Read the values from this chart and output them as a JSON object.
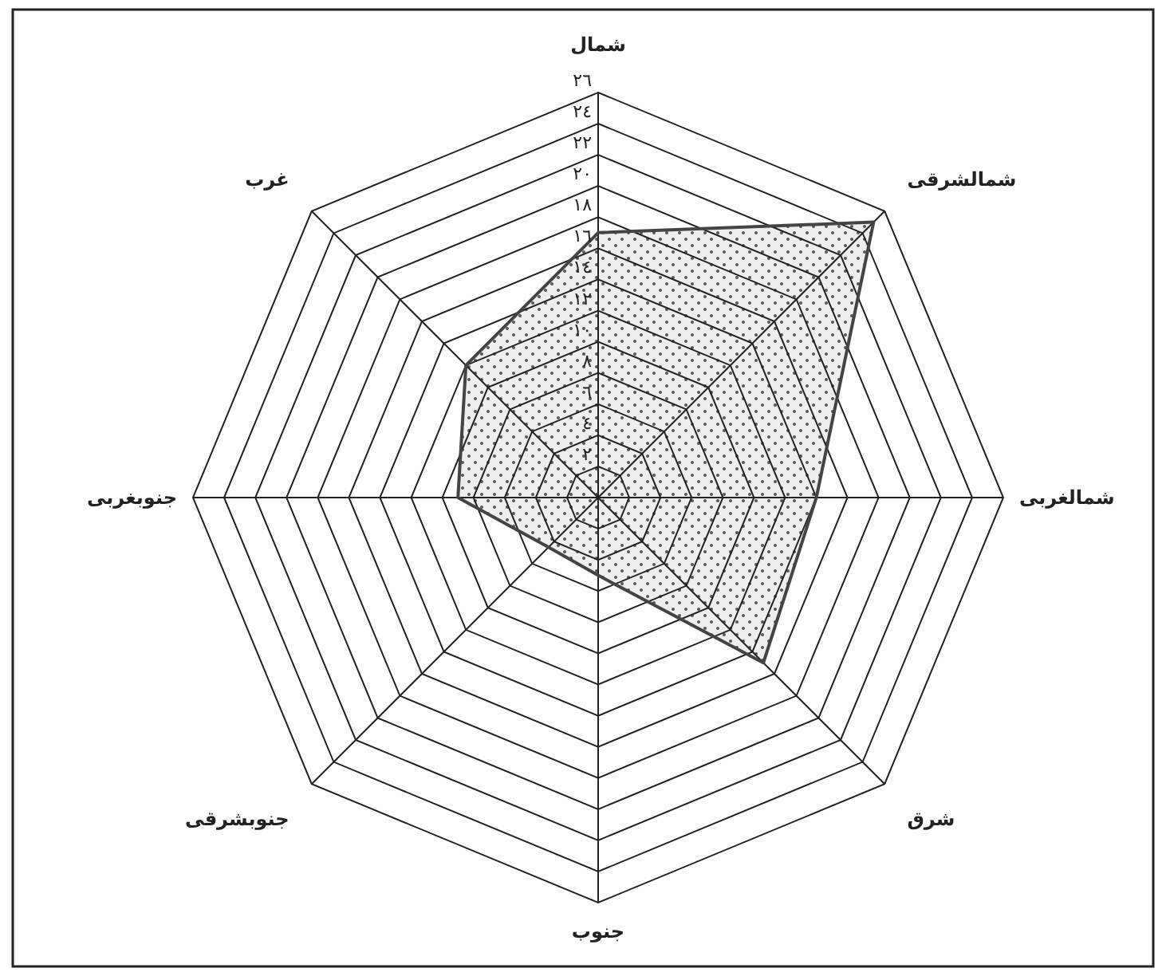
{
  "chart_data": {
    "type": "radar",
    "categories": [
      "شمال",
      "شمالشرقی",
      "شمالغربی",
      "شرق",
      "جنوب",
      "جنوبشرقی",
      "جنوبغربی",
      "غرب"
    ],
    "series": [
      {
        "color": "#444444",
        "values": [
          17,
          25,
          14,
          15,
          5,
          4.5,
          9,
          12
        ]
      }
    ],
    "ylim": [
      0,
      26
    ],
    "yticks": [
      {
        "value": 2,
        "label": "٢"
      },
      {
        "value": 4,
        "label": "٤"
      },
      {
        "value": 6,
        "label": "٦"
      },
      {
        "value": 8,
        "label": "٨"
      },
      {
        "value": 10,
        "label": "١٠"
      },
      {
        "value": 12,
        "label": "١٢"
      },
      {
        "value": 14,
        "label": "١٤"
      },
      {
        "value": 16,
        "label": "١٦"
      },
      {
        "value": 18,
        "label": "١٨"
      },
      {
        "value": 20,
        "label": "٢٠"
      },
      {
        "value": 22,
        "label": "٢٢"
      },
      {
        "value": 24,
        "label": "٢٤"
      },
      {
        "value": 26,
        "label": "٢٦"
      }
    ],
    "grid": true
  }
}
